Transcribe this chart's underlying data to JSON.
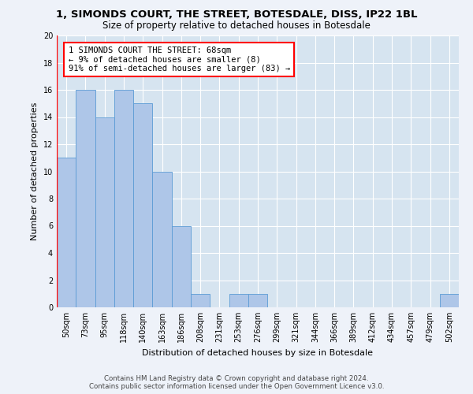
{
  "title": "1, SIMONDS COURT, THE STREET, BOTESDALE, DISS, IP22 1BL",
  "subtitle": "Size of property relative to detached houses in Botesdale",
  "xlabel": "Distribution of detached houses by size in Botesdale",
  "ylabel": "Number of detached properties",
  "categories": [
    "50sqm",
    "73sqm",
    "95sqm",
    "118sqm",
    "140sqm",
    "163sqm",
    "186sqm",
    "208sqm",
    "231sqm",
    "253sqm",
    "276sqm",
    "299sqm",
    "321sqm",
    "344sqm",
    "366sqm",
    "389sqm",
    "412sqm",
    "434sqm",
    "457sqm",
    "479sqm",
    "502sqm"
  ],
  "values": [
    11,
    16,
    14,
    16,
    15,
    10,
    6,
    1,
    0,
    1,
    1,
    0,
    0,
    0,
    0,
    0,
    0,
    0,
    0,
    0,
    1
  ],
  "bar_color": "#aec6e8",
  "bar_edge_color": "#5b9bd5",
  "property_label": "1 SIMONDS COURT THE STREET: 68sqm",
  "annotation_line1": "← 9% of detached houses are smaller (8)",
  "annotation_line2": "91% of semi-detached houses are larger (83) →",
  "ylim": [
    0,
    20
  ],
  "yticks": [
    0,
    2,
    4,
    6,
    8,
    10,
    12,
    14,
    16,
    18,
    20
  ],
  "footer1": "Contains HM Land Registry data © Crown copyright and database right 2024.",
  "footer2": "Contains public sector information licensed under the Open Government Licence v3.0.",
  "background_color": "#eef2f9",
  "plot_bg_color": "#d6e4f0",
  "grid_color": "#ffffff",
  "title_fontsize": 9.5,
  "subtitle_fontsize": 8.5,
  "annotation_fontsize": 7.5,
  "tick_fontsize": 7,
  "ylabel_fontsize": 8,
  "xlabel_fontsize": 8
}
